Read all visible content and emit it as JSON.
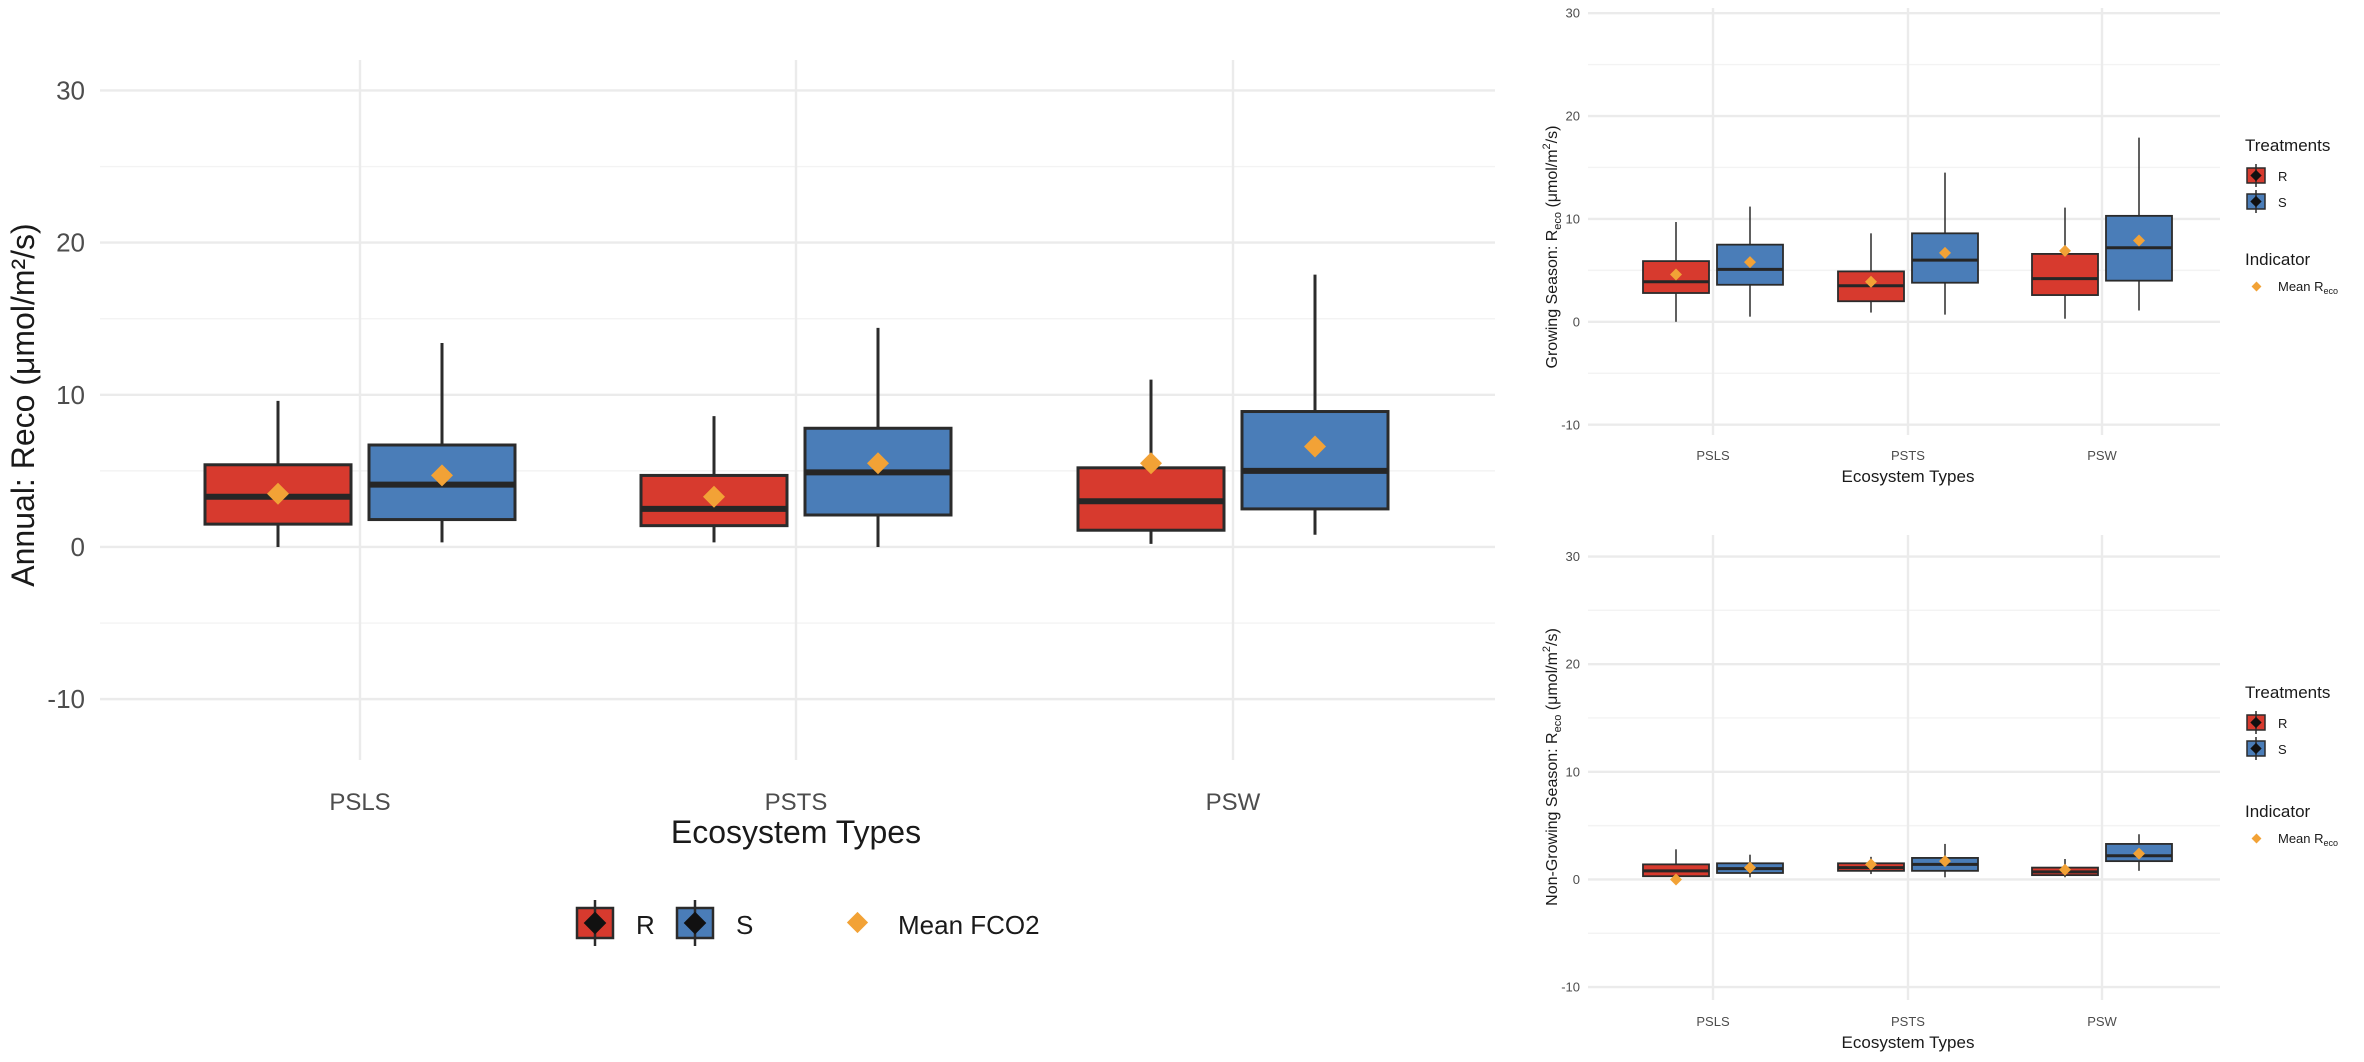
{
  "colors": {
    "R": "#d73a2e",
    "S": "#4a7db8",
    "mean": "#f2a236",
    "grid": "#ebebeb",
    "text": "#4d4d4d"
  },
  "chart_data": [
    {
      "type": "box",
      "panel": "main",
      "title": "",
      "xlabel": "Ecosystem Types",
      "ylabel": "Annual: Reco (μmol/m²/s)",
      "ylim": [
        -14,
        32
      ],
      "yticks": [
        -10,
        0,
        10,
        20,
        30
      ],
      "yticklabels": [
        "-10",
        "0",
        "10",
        "20",
        "30"
      ],
      "categories": [
        "PSLS",
        "PSTS",
        "PSW"
      ],
      "series": [
        {
          "name": "R",
          "boxes": [
            {
              "min": 0.0,
              "q1": 1.5,
              "median": 3.3,
              "q3": 5.4,
              "max": 9.6,
              "mean": 3.5
            },
            {
              "min": 0.3,
              "q1": 1.4,
              "median": 2.5,
              "q3": 4.7,
              "max": 8.6,
              "mean": 3.3
            },
            {
              "min": 0.2,
              "q1": 1.1,
              "median": 3.0,
              "q3": 5.2,
              "max": 11.0,
              "mean": 5.5
            }
          ]
        },
        {
          "name": "S",
          "boxes": [
            {
              "min": 0.3,
              "q1": 1.8,
              "median": 4.1,
              "q3": 6.7,
              "max": 13.4,
              "mean": 4.7
            },
            {
              "min": 0.0,
              "q1": 2.1,
              "median": 4.9,
              "q3": 7.8,
              "max": 14.4,
              "mean": 5.5
            },
            {
              "min": 0.8,
              "q1": 2.5,
              "median": 5.0,
              "q3": 8.9,
              "max": 17.9,
              "mean": 6.6
            }
          ]
        }
      ],
      "legend": {
        "position": "bottom",
        "treatments": [
          "R",
          "S"
        ],
        "indicator": "Mean FCO2"
      }
    },
    {
      "type": "box",
      "panel": "growing",
      "xlabel": "Ecosystem Types",
      "ylabel_prefix": "Growing Season: R",
      "ylabel_sub": "eco",
      "ylabel_mid": " (μmol/m",
      "ylabel_sup": "2",
      "ylabel_suffix": "/s)",
      "ylim": [
        -11,
        30.5
      ],
      "yticks": [
        -10,
        0,
        10,
        20,
        30
      ],
      "yticklabels": [
        "-10",
        "0",
        "10",
        "20",
        "30"
      ],
      "categories": [
        "PSLS",
        "PSTS",
        "PSW"
      ],
      "series": [
        {
          "name": "R",
          "boxes": [
            {
              "min": 0.0,
              "q1": 2.8,
              "median": 3.9,
              "q3": 5.9,
              "max": 9.7,
              "mean": 4.6
            },
            {
              "min": 0.9,
              "q1": 2.0,
              "median": 3.5,
              "q3": 4.9,
              "max": 8.6,
              "mean": 3.9
            },
            {
              "min": 0.3,
              "q1": 2.6,
              "median": 4.2,
              "q3": 6.6,
              "max": 11.1,
              "mean": 6.9
            }
          ]
        },
        {
          "name": "S",
          "boxes": [
            {
              "min": 0.5,
              "q1": 3.6,
              "median": 5.1,
              "q3": 7.5,
              "max": 11.2,
              "mean": 5.8
            },
            {
              "min": 0.7,
              "q1": 3.8,
              "median": 6.0,
              "q3": 8.6,
              "max": 14.5,
              "mean": 6.7
            },
            {
              "min": 1.1,
              "q1": 4.0,
              "median": 7.2,
              "q3": 10.3,
              "max": 17.9,
              "mean": 7.9
            }
          ]
        }
      ],
      "legend": {
        "position": "right",
        "treatments_title": "Treatments",
        "treatments": [
          "R",
          "S"
        ],
        "indicator_title": "Indicator",
        "indicator_prefix": "Mean R",
        "indicator_sub": "eco"
      }
    },
    {
      "type": "box",
      "panel": "nongrowing",
      "xlabel": "Ecosystem Types",
      "ylabel_prefix": "Non-Growing Season: R",
      "ylabel_sub": "eco",
      "ylabel_mid": " (μmol/m",
      "ylabel_sup": "2",
      "ylabel_suffix": "/s)",
      "ylim": [
        -11.2,
        32
      ],
      "yticks": [
        -10,
        0,
        10,
        20,
        30
      ],
      "yticklabels": [
        "-10",
        "0",
        "10",
        "20",
        "30"
      ],
      "categories": [
        "PSLS",
        "PSTS",
        "PSW"
      ],
      "series": [
        {
          "name": "R",
          "boxes": [
            {
              "min": 0.0,
              "q1": 0.3,
              "median": 0.8,
              "q3": 1.4,
              "max": 2.8,
              "mean": 0.0
            },
            {
              "min": 0.5,
              "q1": 0.8,
              "median": 1.1,
              "q3": 1.5,
              "max": 2.1,
              "mean": 1.4
            },
            {
              "min": 0.2,
              "q1": 0.4,
              "median": 0.7,
              "q3": 1.1,
              "max": 1.9,
              "mean": 0.9
            }
          ]
        },
        {
          "name": "S",
          "boxes": [
            {
              "min": 0.2,
              "q1": 0.6,
              "median": 1.0,
              "q3": 1.5,
              "max": 2.3,
              "mean": 1.1
            },
            {
              "min": 0.2,
              "q1": 0.8,
              "median": 1.4,
              "q3": 2.0,
              "max": 3.3,
              "mean": 1.7
            },
            {
              "min": 0.8,
              "q1": 1.7,
              "median": 2.2,
              "q3": 3.3,
              "max": 4.2,
              "mean": 2.4
            }
          ]
        }
      ],
      "legend": {
        "position": "right",
        "treatments_title": "Treatments",
        "treatments": [
          "R",
          "S"
        ],
        "indicator_title": "Indicator",
        "indicator_prefix": "Mean R",
        "indicator_sub": "eco"
      }
    }
  ]
}
